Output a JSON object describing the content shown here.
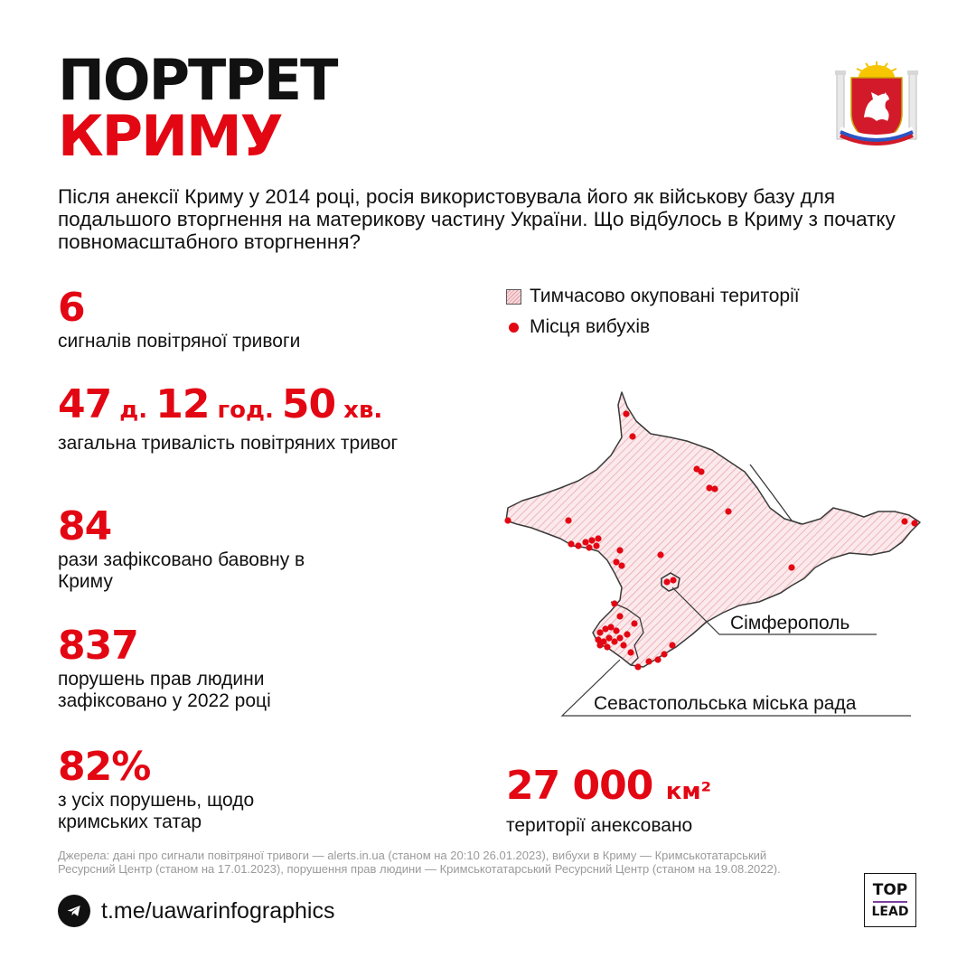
{
  "title": {
    "line1": "ПОРТРЕТ",
    "line2": "КРИМУ"
  },
  "intro": "Після анексії Криму у 2014 році, росія використовувала його як військову базу для подальшого вторгнення на материкову частину України. Що відбулось в Криму з початку повномасштабного вторгнення?",
  "stats": [
    {
      "value": "6",
      "label": "сигналів повітряної тривоги"
    },
    {
      "value_parts": [
        "47",
        " д. ",
        "12",
        " год. ",
        "50",
        " хв."
      ],
      "label": "загальна тривалість повітряних тривог"
    },
    {
      "value": "84",
      "label": "рази зафіксовано бавовну в Криму"
    },
    {
      "value": "837",
      "label": "порушень прав людини зафіксовано у 2022 році"
    },
    {
      "value": "82%",
      "label": "з усіх порушень, щодо кримських татар"
    }
  ],
  "legend": {
    "occupied": "Тимчасово окуповані території",
    "explosions": "Місця вибухів"
  },
  "map": {
    "labels": {
      "simferopol": "Сімферополь",
      "sevastopol": "Севастопольська міська рада"
    }
  },
  "area": {
    "value": "27 000",
    "unit": "км²",
    "label": "території анексовано"
  },
  "sources": "Джерела: дані про сигнали повітряної тривоги — alerts.in.ua (станом на 20:10 26.01.2023), вибухи в Криму — Кримськотатарський Ресурсний Центр (станом на 17.01.2023), порушення прав людини — Кримськотатарський Ресурсний Центр (станом на 19.08.2022).",
  "telegram": {
    "link": "t.me/uawarinfographics",
    "icon": "telegram-icon"
  },
  "brand": {
    "top": "TOP",
    "bottom": "LEAD"
  },
  "colors": {
    "accent": "#e30613",
    "text": "#111111",
    "hatch": "#e69aa2",
    "muted": "#9a9a9a"
  }
}
